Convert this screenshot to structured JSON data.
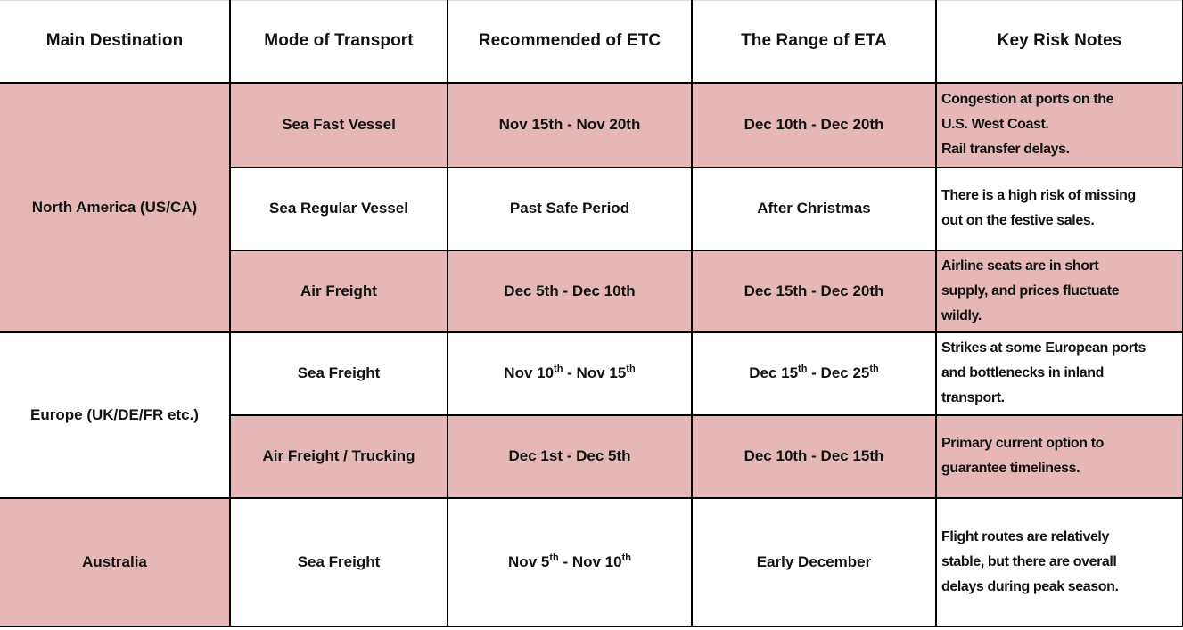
{
  "colors": {
    "accent_rose": "#e5b8b7",
    "border": "#000000",
    "text": "#121212"
  },
  "table": {
    "headers": [
      "Main Destination",
      "Mode of Transport",
      "Recommended of ETC",
      "The Range of ETA",
      "Key Risk Notes"
    ],
    "groups": [
      {
        "destination": "North America (US/CA)",
        "destination_shaded": true,
        "rows": [
          {
            "mode": "Sea Fast Vessel",
            "etc": "Nov 15th - Nov 20th",
            "eta": "Dec 10th - Dec 20th",
            "risk": "Congestion at ports on the\nU.S. West Coast.\nRail transfer delays.",
            "shaded": true
          },
          {
            "mode": "Sea Regular Vessel",
            "etc": "Past Safe Period",
            "eta": "After Christmas",
            "risk": "There is a high risk of missing\nout on the festive sales.",
            "shaded": false
          },
          {
            "mode": "Air Freight",
            "etc": "Dec 5th - Dec 10th",
            "eta": "Dec 15th - Dec 20th",
            "risk": "Airline seats are in short\nsupply, and prices fluctuate\nwildly.",
            "shaded": true
          }
        ]
      },
      {
        "destination": "Europe (UK/DE/FR etc.)",
        "destination_shaded": false,
        "rows": [
          {
            "mode": "Sea Freight",
            "etc_parts": [
              {
                "t": "Nov 10"
              },
              {
                "t": "th",
                "sup": true
              },
              {
                "t": " - Nov 15"
              },
              {
                "t": "th",
                "sup": true
              }
            ],
            "eta_parts": [
              {
                "t": "Dec 15"
              },
              {
                "t": "th",
                "sup": true
              },
              {
                "t": " - Dec 25"
              },
              {
                "t": "th",
                "sup": true
              }
            ],
            "risk": "Strikes at some European ports\nand bottlenecks in inland\ntransport.",
            "shaded": false
          },
          {
            "mode": "Air Freight / Trucking",
            "etc": "Dec 1st - Dec 5th",
            "eta": "Dec 10th - Dec 15th",
            "risk": "Primary current option to\nguarantee timeliness.",
            "shaded": true
          }
        ]
      },
      {
        "destination": "Australia",
        "destination_shaded": true,
        "rows": [
          {
            "mode": "Sea Freight",
            "etc_parts": [
              {
                "t": "Nov 5"
              },
              {
                "t": "th",
                "sup": true
              },
              {
                "t": " - Nov 10"
              },
              {
                "t": "th",
                "sup": true
              }
            ],
            "eta": "Early December",
            "risk": "Flight routes are relatively\nstable, but there are overall\ndelays during peak season.",
            "shaded": false
          }
        ]
      }
    ]
  }
}
